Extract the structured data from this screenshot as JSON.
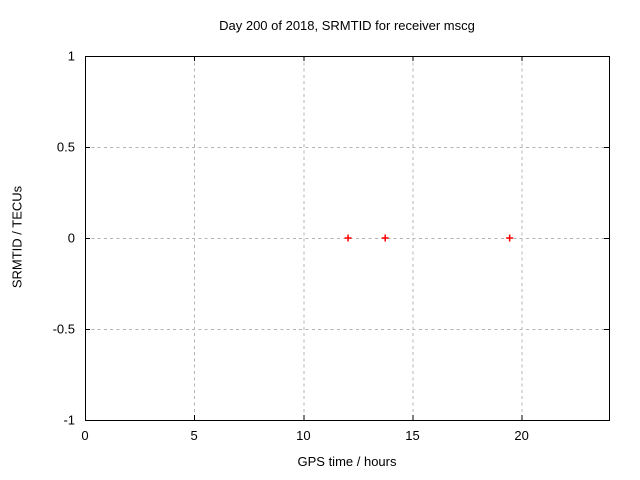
{
  "chart_data": {
    "type": "scatter",
    "title": "Day 200 of 2018, SRMTID for receiver mscg",
    "xlabel": "GPS time / hours",
    "ylabel": "SRMTID / TECUs",
    "xlim": [
      0,
      24
    ],
    "ylim": [
      -1,
      1
    ],
    "xticks": [
      0,
      5,
      10,
      15,
      20
    ],
    "xtick_labels": [
      "0",
      "5",
      "10",
      "15",
      "20"
    ],
    "yticks": [
      1,
      0.5,
      0,
      -0.5,
      -1
    ],
    "ytick_labels": [
      "1",
      "0.5",
      "0",
      "-0.5",
      "-1"
    ],
    "grid": true,
    "legend": "none",
    "series": [
      {
        "marker": "plus",
        "color": "#ff0000",
        "x": [
          12.05,
          13.75,
          19.45
        ],
        "y": [
          0,
          0,
          0
        ]
      }
    ],
    "colors": {
      "background": "#ffffff",
      "axis": "#000000",
      "text": "#000000",
      "grid": "#b4b4b4"
    }
  }
}
